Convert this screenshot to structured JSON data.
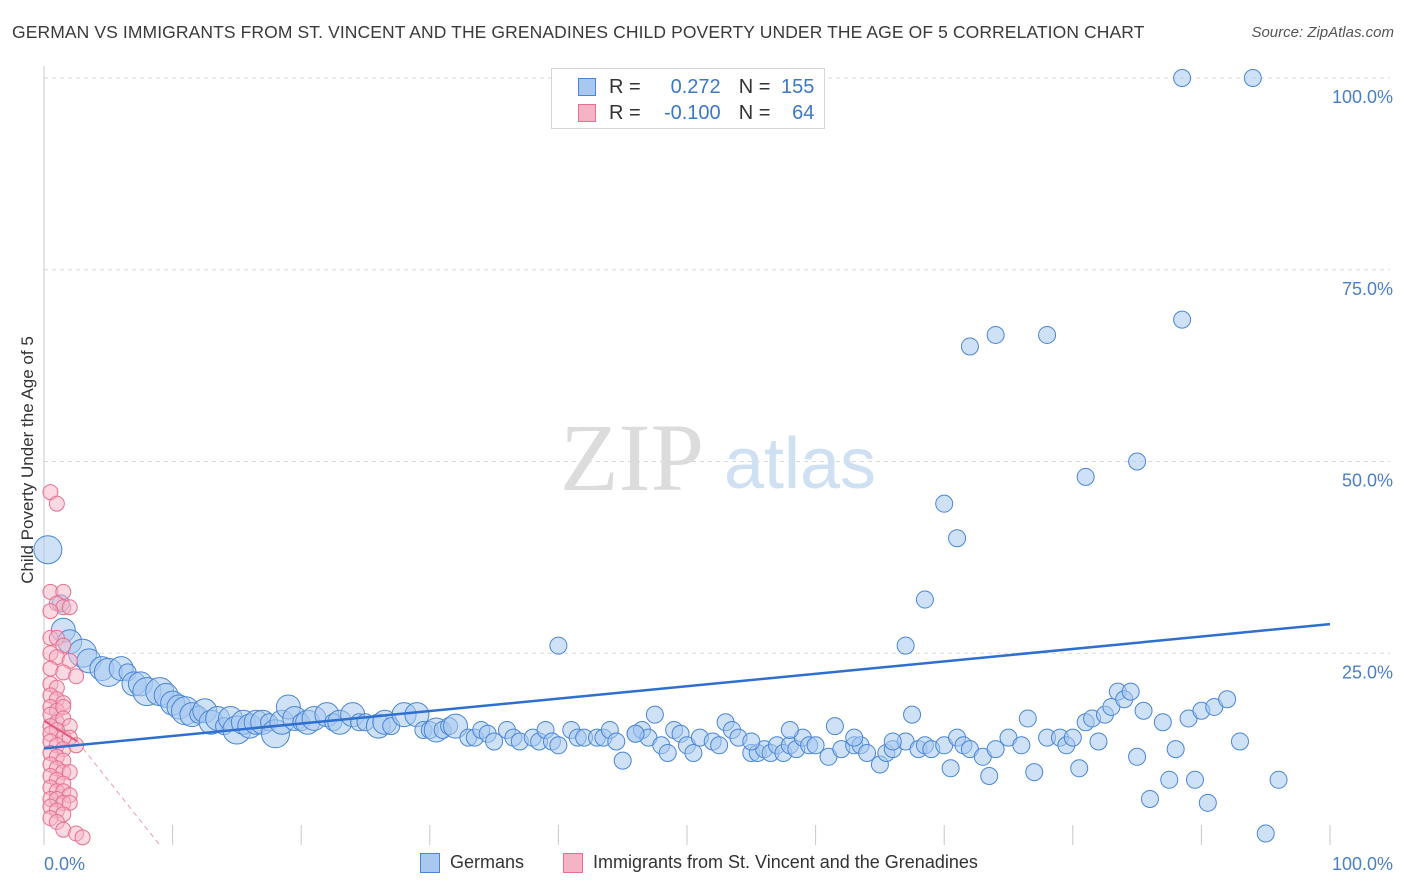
{
  "title": "GERMAN VS IMMIGRANTS FROM ST. VINCENT AND THE GRENADINES CHILD POVERTY UNDER THE AGE OF 5 CORRELATION CHART",
  "source": "Source: ZipAtlas.com",
  "watermark": {
    "zip": "ZIP",
    "atlas": "atlas"
  },
  "legend_top": {
    "rows": [
      {
        "r_label": "R =",
        "r_value": "0.272",
        "n_label": "N =",
        "n_value": "155"
      },
      {
        "r_label": "R =",
        "r_value": "-0.100",
        "n_label": "N =",
        "n_value": "64"
      }
    ]
  },
  "legend_bottom": {
    "series1": "Germans",
    "series2": "Immigrants from St. Vincent and the Grenadines"
  },
  "colors": {
    "german_fill": "#a8c8f0",
    "german_stroke": "#4a86d8",
    "german_line": "#2f6fcf",
    "svg_fill": "#f5b3c6",
    "svg_stroke": "#e8708f",
    "svg_line": "#e05a80",
    "axis_text": "#4a7fc8",
    "grid": "#d8d8d8"
  },
  "chart_data": {
    "type": "scatter",
    "title": "GERMAN VS IMMIGRANTS FROM ST. VINCENT AND THE GRENADINES CHILD POVERTY UNDER THE AGE OF 5 CORRELATION CHART",
    "xlabel": "",
    "ylabel": "Child Poverty Under the Age of 5",
    "xlim": [
      0,
      100
    ],
    "ylim": [
      0,
      100
    ],
    "x_ticks": [
      "0.0%",
      "100.0%"
    ],
    "y_ticks": [
      "100.0%",
      "75.0%",
      "50.0%",
      "25.0%"
    ],
    "legend_position": "bottom",
    "series": [
      {
        "name": "Germans",
        "R": 0.272,
        "N": 155,
        "trend": [
          [
            0,
            12.6
          ],
          [
            100,
            28.8
          ]
        ],
        "points": [
          [
            0.3,
            38.5,
            3
          ],
          [
            1.3,
            31.5,
            1
          ],
          [
            1.5,
            28,
            2
          ],
          [
            2,
            26.5,
            2
          ],
          [
            3,
            25,
            3
          ],
          [
            3.5,
            24,
            2
          ],
          [
            4.5,
            23,
            2
          ],
          [
            5,
            22.5,
            3
          ],
          [
            6,
            23,
            2
          ],
          [
            6.5,
            22.5,
            1
          ],
          [
            7,
            21,
            2
          ],
          [
            7.5,
            21,
            2
          ],
          [
            8,
            20,
            3
          ],
          [
            9,
            20,
            3
          ],
          [
            9.5,
            19.5,
            2
          ],
          [
            10,
            18.5,
            2
          ],
          [
            10.5,
            18,
            2
          ],
          [
            11,
            17.5,
            3
          ],
          [
            11.5,
            17,
            2
          ],
          [
            12,
            17,
            1
          ],
          [
            12.5,
            17.5,
            2
          ],
          [
            13,
            16,
            2
          ],
          [
            13.5,
            16.5,
            2
          ],
          [
            14,
            15.5,
            1
          ],
          [
            14.5,
            16.5,
            2
          ],
          [
            15,
            15,
            3
          ],
          [
            15.5,
            16,
            2
          ],
          [
            16,
            15.5,
            2
          ],
          [
            16.5,
            16,
            2
          ],
          [
            17,
            16,
            2
          ],
          [
            17.5,
            16,
            1
          ],
          [
            18,
            14.5,
            3
          ],
          [
            18.5,
            16,
            2
          ],
          [
            19,
            18,
            2
          ],
          [
            19.5,
            16.5,
            2
          ],
          [
            20,
            16,
            1
          ],
          [
            20.5,
            16,
            2
          ],
          [
            21,
            16.5,
            2
          ],
          [
            22,
            17,
            2
          ],
          [
            22.5,
            16,
            1
          ],
          [
            23,
            16,
            2
          ],
          [
            24,
            17,
            2
          ],
          [
            24.5,
            16,
            1
          ],
          [
            25,
            16,
            1
          ],
          [
            26,
            15.5,
            2
          ],
          [
            26.5,
            16,
            2
          ],
          [
            27,
            15.5,
            1
          ],
          [
            28,
            17,
            2
          ],
          [
            29,
            17,
            2
          ],
          [
            29.5,
            15,
            1
          ],
          [
            30,
            15,
            1
          ],
          [
            30.5,
            15,
            2
          ],
          [
            31,
            15,
            1
          ],
          [
            31.5,
            15.5,
            1
          ],
          [
            32,
            15.5,
            2
          ],
          [
            33,
            14,
            1
          ],
          [
            33.5,
            14,
            1
          ],
          [
            34,
            15,
            1
          ],
          [
            34.5,
            14.5,
            1
          ],
          [
            35,
            13.5,
            1
          ],
          [
            36,
            15,
            1
          ],
          [
            36.5,
            14,
            1
          ],
          [
            37,
            13.5,
            1
          ],
          [
            38,
            14,
            1
          ],
          [
            38.5,
            13.5,
            1
          ],
          [
            39,
            15,
            1
          ],
          [
            39.5,
            13.5,
            1
          ],
          [
            40,
            13,
            1
          ],
          [
            41,
            15,
            1
          ],
          [
            41.5,
            14,
            1
          ],
          [
            42,
            14,
            1
          ],
          [
            43,
            14,
            1
          ],
          [
            43.5,
            14,
            1
          ],
          [
            44,
            15,
            1
          ],
          [
            44.5,
            13.5,
            1
          ],
          [
            45,
            11,
            1
          ],
          [
            46,
            14.5,
            1
          ],
          [
            46.5,
            15,
            1
          ],
          [
            47,
            14,
            1
          ],
          [
            47.5,
            17,
            1
          ],
          [
            48,
            13,
            1
          ],
          [
            48.5,
            12,
            1
          ],
          [
            49,
            15,
            1
          ],
          [
            49.5,
            14.5,
            1
          ],
          [
            50,
            13,
            1
          ],
          [
            50.5,
            12,
            1
          ],
          [
            51,
            14,
            1
          ],
          [
            52,
            13.5,
            1
          ],
          [
            52.5,
            13,
            1
          ],
          [
            53,
            16,
            1
          ],
          [
            53.5,
            15,
            1
          ],
          [
            54,
            14,
            1
          ],
          [
            55,
            12,
            1
          ],
          [
            55.5,
            12,
            1
          ],
          [
            56,
            12.5,
            1
          ],
          [
            56.5,
            12,
            1
          ],
          [
            57,
            13,
            1
          ],
          [
            57.5,
            12,
            1
          ],
          [
            58,
            13,
            1
          ],
          [
            58.5,
            12.5,
            1
          ],
          [
            59,
            14,
            1
          ],
          [
            59.5,
            13,
            1
          ],
          [
            60,
            13,
            1
          ],
          [
            61,
            11.5,
            1
          ],
          [
            61.5,
            15.5,
            1
          ],
          [
            62,
            12.5,
            1
          ],
          [
            63,
            13,
            1
          ],
          [
            63.5,
            13,
            1
          ],
          [
            64,
            12,
            1
          ],
          [
            65,
            10.5,
            1
          ],
          [
            65.5,
            12,
            1
          ],
          [
            66,
            12.5,
            1
          ],
          [
            67,
            13.5,
            1
          ],
          [
            67.5,
            17,
            1
          ],
          [
            68,
            12.5,
            1
          ],
          [
            68.5,
            13,
            1
          ],
          [
            69,
            12.5,
            1
          ],
          [
            70,
            13,
            1
          ],
          [
            70.5,
            10,
            1
          ],
          [
            71,
            14,
            1
          ],
          [
            71.5,
            13,
            1
          ],
          [
            72,
            12.5,
            1
          ],
          [
            73,
            11.5,
            1
          ],
          [
            73.5,
            9,
            1
          ],
          [
            74,
            12.5,
            1
          ],
          [
            75,
            14,
            1
          ],
          [
            76,
            13,
            1
          ],
          [
            76.5,
            16.5,
            1
          ],
          [
            77,
            9.5,
            1
          ],
          [
            78,
            14,
            1
          ],
          [
            79,
            14,
            1
          ],
          [
            79.5,
            13,
            1
          ],
          [
            80,
            14,
            1
          ],
          [
            80.5,
            10,
            1
          ],
          [
            81,
            16,
            1
          ],
          [
            81.5,
            16.5,
            1
          ],
          [
            82,
            13.5,
            1
          ],
          [
            82.5,
            17,
            1
          ],
          [
            83,
            18,
            1
          ],
          [
            83.5,
            20,
            1
          ],
          [
            84,
            19,
            1
          ],
          [
            84.5,
            20,
            1
          ],
          [
            85,
            11.5,
            1
          ],
          [
            85.5,
            17.5,
            1
          ],
          [
            86,
            6,
            1
          ],
          [
            87,
            16,
            1
          ],
          [
            87.5,
            8.5,
            1
          ],
          [
            88,
            12.5,
            1
          ],
          [
            89,
            16.5,
            1
          ],
          [
            89.5,
            8.5,
            1
          ],
          [
            90,
            17.5,
            1
          ],
          [
            90.5,
            5.5,
            1
          ],
          [
            91,
            18,
            1
          ],
          [
            92,
            19,
            1
          ],
          [
            93,
            13.5,
            1
          ],
          [
            95,
            1.5,
            1
          ],
          [
            96,
            8.5,
            1
          ],
          [
            67,
            26,
            1
          ],
          [
            68.5,
            32,
            1
          ],
          [
            72,
            65,
            1
          ],
          [
            74,
            66.5,
            1
          ],
          [
            78,
            66.5,
            1
          ],
          [
            70,
            44.5,
            1
          ],
          [
            71,
            40,
            1
          ],
          [
            81,
            48,
            1
          ],
          [
            85,
            50,
            1
          ],
          [
            88.5,
            68.5,
            1
          ],
          [
            88.5,
            100,
            1
          ],
          [
            94,
            100,
            1
          ],
          [
            40,
            26,
            1
          ],
          [
            46,
            14.5,
            1
          ],
          [
            55,
            13.5,
            1
          ],
          [
            58,
            15,
            1
          ],
          [
            63,
            14,
            1
          ],
          [
            66,
            13.5,
            1
          ]
        ]
      },
      {
        "name": "Immigrants from St. Vincent and the Grenadines",
        "R": -0.1,
        "N": 64,
        "trend": [
          [
            0,
            16.2
          ],
          [
            2.6,
            13.5
          ],
          [
            9,
            0
          ]
        ],
        "points": [
          [
            0.5,
            46
          ],
          [
            1,
            44.5
          ],
          [
            0.5,
            33
          ],
          [
            1.5,
            33
          ],
          [
            1,
            31.5
          ],
          [
            1.5,
            31
          ],
          [
            0.5,
            30.5
          ],
          [
            2,
            31
          ],
          [
            0.5,
            27
          ],
          [
            1,
            27
          ],
          [
            1.5,
            26
          ],
          [
            0.5,
            25
          ],
          [
            1,
            24.5
          ],
          [
            2,
            24
          ],
          [
            0.5,
            23
          ],
          [
            1.5,
            22.5
          ],
          [
            2.5,
            22
          ],
          [
            0.5,
            21
          ],
          [
            1,
            20.5
          ],
          [
            0.5,
            19.5
          ],
          [
            1,
            19
          ],
          [
            1.5,
            18.5
          ],
          [
            0.5,
            18
          ],
          [
            1,
            17.5
          ],
          [
            1.5,
            18
          ],
          [
            0.5,
            17
          ],
          [
            1,
            16
          ],
          [
            1.5,
            16.5
          ],
          [
            0.5,
            15.5
          ],
          [
            2,
            15.5
          ],
          [
            1,
            15
          ],
          [
            0.5,
            14.5
          ],
          [
            1.5,
            14
          ],
          [
            2,
            14
          ],
          [
            0.5,
            13.5
          ],
          [
            1,
            13
          ],
          [
            1.5,
            12.5
          ],
          [
            2.5,
            13
          ],
          [
            0.5,
            12
          ],
          [
            1,
            11.5
          ],
          [
            1.5,
            11
          ],
          [
            0.5,
            10.5
          ],
          [
            1,
            10
          ],
          [
            1.5,
            9.5
          ],
          [
            2,
            9.5
          ],
          [
            0.5,
            9
          ],
          [
            1,
            8.5
          ],
          [
            1.5,
            8
          ],
          [
            0.5,
            7.5
          ],
          [
            1,
            7
          ],
          [
            1.5,
            7
          ],
          [
            2,
            6.5
          ],
          [
            0.5,
            6
          ],
          [
            1,
            6
          ],
          [
            1.5,
            5.5
          ],
          [
            2,
            5.5
          ],
          [
            0.5,
            5
          ],
          [
            1,
            4.5
          ],
          [
            1.5,
            4
          ],
          [
            0.5,
            3.5
          ],
          [
            1,
            3
          ],
          [
            1.5,
            2
          ],
          [
            2.5,
            1.5
          ],
          [
            3,
            1
          ]
        ]
      }
    ]
  }
}
